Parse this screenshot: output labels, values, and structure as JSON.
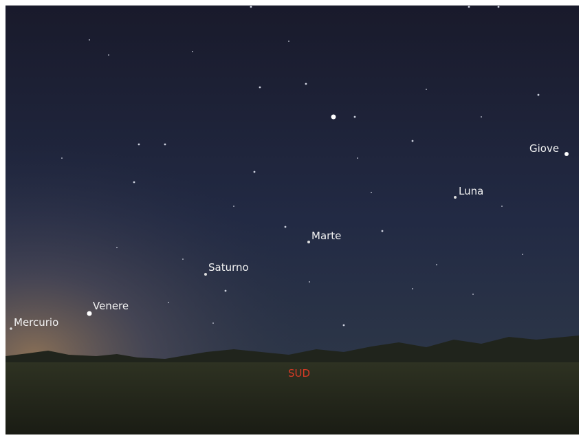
{
  "sky_labels": [
    {
      "label": "Giove"
    },
    {
      "label": "Luna"
    },
    {
      "label": "Marte"
    },
    {
      "label": "Saturno"
    },
    {
      "label": "Venere"
    },
    {
      "label": "Mercurio"
    }
  ],
  "direction": "SUD"
}
